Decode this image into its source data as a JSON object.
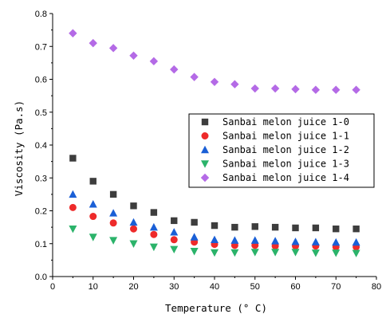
{
  "chart_data": {
    "type": "scatter",
    "xlabel": "Temperature (° C)",
    "ylabel": "Viscosity (Pa.s)",
    "xlim": [
      0,
      80
    ],
    "ylim": [
      0,
      0.8
    ],
    "x_ticks": [
      "0",
      "10",
      "20",
      "30",
      "40",
      "50",
      "60",
      "70",
      "80"
    ],
    "y_ticks": [
      "0.0",
      "0.1",
      "0.2",
      "0.3",
      "0.4",
      "0.5",
      "0.6",
      "0.7",
      "0.8"
    ],
    "grid": false,
    "legend_position": "center-right",
    "x": [
      5,
      10,
      15,
      20,
      25,
      30,
      35,
      40,
      45,
      50,
      55,
      60,
      65,
      70,
      75
    ],
    "series": [
      {
        "name": "Sanbai melon juice 1-0",
        "marker": "square",
        "color": "#3d3d3d",
        "values": [
          0.36,
          0.29,
          0.25,
          0.215,
          0.195,
          0.17,
          0.165,
          0.155,
          0.15,
          0.152,
          0.15,
          0.148,
          0.148,
          0.145,
          0.145
        ]
      },
      {
        "name": "Sanbai melon juice 1-1",
        "marker": "circle",
        "color": "#ee2a2a",
        "values": [
          0.21,
          0.183,
          0.163,
          0.145,
          0.128,
          0.112,
          0.105,
          0.098,
          0.095,
          0.095,
          0.093,
          0.093,
          0.093,
          0.09,
          0.09
        ]
      },
      {
        "name": "Sanbai melon juice 1-2",
        "marker": "triangle-up",
        "color": "#1a5fd6",
        "values": [
          0.25,
          0.22,
          0.193,
          0.165,
          0.15,
          0.135,
          0.12,
          0.112,
          0.11,
          0.11,
          0.108,
          0.106,
          0.105,
          0.104,
          0.104
        ]
      },
      {
        "name": "Sanbai melon juice 1-3",
        "marker": "triangle-down",
        "color": "#2bb36a",
        "values": [
          0.145,
          0.12,
          0.11,
          0.1,
          0.09,
          0.083,
          0.077,
          0.073,
          0.073,
          0.074,
          0.074,
          0.074,
          0.072,
          0.072,
          0.071
        ]
      },
      {
        "name": "Sanbai melon juice 1-4",
        "marker": "diamond",
        "color": "#b46ae6",
        "values": [
          0.74,
          0.71,
          0.695,
          0.672,
          0.655,
          0.63,
          0.607,
          0.592,
          0.585,
          0.572,
          0.572,
          0.57,
          0.568,
          0.568,
          0.568
        ]
      }
    ]
  }
}
